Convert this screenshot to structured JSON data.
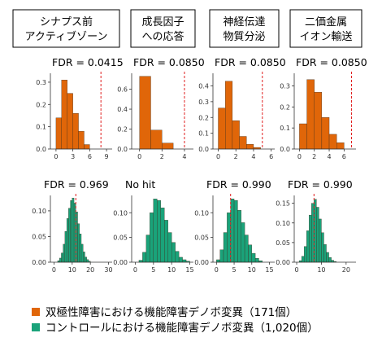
{
  "colors": {
    "patient": "#e06609",
    "control": "#1aa37a",
    "threshold": "#e02020",
    "axis": "#333333"
  },
  "legend": {
    "patient_label": "双極性障害における機能障害デノボ変異（171個）",
    "control_label": "コントロールにおける機能障害デノボ変異（1,020個）"
  },
  "chart_data": [
    {
      "type": "bar",
      "group": "patient",
      "category": "シナプス前\nアクティブゾーン",
      "annotation": "FDR = 0.0415",
      "xticks": [
        0,
        3,
        6,
        9
      ],
      "xlim": [
        -1,
        10
      ],
      "yticks": [
        0.0,
        0.1,
        0.2,
        0.3
      ],
      "ytick_labels": [
        "0.0",
        "0.1",
        "0.2",
        "0.3"
      ],
      "ylim": [
        0,
        0.34
      ],
      "bin_width": 1,
      "x": [
        0,
        1,
        2,
        3,
        4,
        5
      ],
      "values": [
        0.14,
        0.31,
        0.25,
        0.16,
        0.08,
        0.02
      ],
      "threshold": 8
    },
    {
      "type": "bar",
      "group": "patient",
      "category": "成長因子\nへの応答",
      "annotation": "FDR = 0.0850",
      "xticks": [
        0,
        2,
        4
      ],
      "xlim": [
        -0.7,
        4.8
      ],
      "yticks": [
        0.0,
        0.2,
        0.4,
        0.6
      ],
      "ytick_labels": [
        "0.0",
        "0.2",
        "0.4",
        "0.6"
      ],
      "ylim": [
        0,
        0.76
      ],
      "bin_width": 1,
      "x": [
        0,
        1,
        2
      ],
      "values": [
        0.73,
        0.19,
        0.06
      ],
      "threshold": 4
    },
    {
      "type": "bar",
      "group": "patient",
      "category": "神経伝達\n物質分泌",
      "annotation": "FDR = 0.0850",
      "xticks": [
        0,
        2,
        4,
        6
      ],
      "xlim": [
        -0.6,
        6.4
      ],
      "yticks": [
        0.0,
        0.1,
        0.2,
        0.3,
        0.4
      ],
      "ytick_labels": [
        "0.0",
        "0.1",
        "0.2",
        "0.3",
        "0.4"
      ],
      "ylim": [
        0,
        0.48
      ],
      "bin_width": 0.8,
      "x": [
        0,
        0.8,
        1.6,
        2.4,
        3.2,
        4.0
      ],
      "values": [
        0.26,
        0.43,
        0.18,
        0.08,
        0.03,
        0.01
      ],
      "threshold": 5
    },
    {
      "type": "bar",
      "group": "patient",
      "category": "二価金属\nイオン輸送",
      "annotation": "FDR = 0.0850",
      "xticks": [
        0,
        2,
        4,
        6
      ],
      "xlim": [
        -0.7,
        7.6
      ],
      "yticks": [
        0.0,
        0.1,
        0.2,
        0.3
      ],
      "ytick_labels": [
        "0.0",
        "0.1",
        "0.2",
        "0.3"
      ],
      "ylim": [
        0,
        0.36
      ],
      "bin_width": 1,
      "x": [
        0,
        1,
        2,
        3,
        4,
        5
      ],
      "values": [
        0.12,
        0.33,
        0.27,
        0.15,
        0.07,
        0.03
      ],
      "threshold": 7
    },
    {
      "type": "bar",
      "group": "control",
      "category": "シナプス前\nアクティブゾーン",
      "annotation": "FDR = 0.969",
      "xticks": [
        0,
        10,
        20,
        30
      ],
      "xlim": [
        -2,
        32
      ],
      "yticks": [
        0.0,
        0.05,
        0.1
      ],
      "ytick_labels": [
        "0.00",
        "0.05",
        "0.10"
      ],
      "ylim": [
        0,
        0.13
      ],
      "bin_width": 1,
      "x": [
        2,
        3,
        4,
        5,
        6,
        7,
        8,
        9,
        10,
        11,
        12,
        13,
        14,
        15,
        16,
        17,
        18,
        19
      ],
      "values": [
        0.003,
        0.008,
        0.018,
        0.035,
        0.06,
        0.085,
        0.105,
        0.12,
        0.125,
        0.115,
        0.098,
        0.075,
        0.055,
        0.035,
        0.02,
        0.01,
        0.005,
        0.002
      ],
      "threshold": 12
    },
    {
      "type": "bar",
      "group": "control",
      "category": "成長因子\nへの応答",
      "annotation": "No hit",
      "xticks": [
        0,
        5,
        10,
        15
      ],
      "xlim": [
        -1,
        16
      ],
      "yticks": [
        0.0,
        0.05,
        0.1
      ],
      "ytick_labels": [
        "0.00",
        "0.05",
        "0.10"
      ],
      "ylim": [
        0,
        0.135
      ],
      "bin_width": 1,
      "x": [
        1,
        2,
        3,
        4,
        5,
        6,
        7,
        8,
        9,
        10,
        11,
        12,
        13,
        14
      ],
      "values": [
        0.004,
        0.02,
        0.055,
        0.1,
        0.128,
        0.125,
        0.11,
        0.085,
        0.06,
        0.04,
        0.022,
        0.01,
        0.005,
        0.002
      ],
      "threshold": null
    },
    {
      "type": "bar",
      "group": "control",
      "category": "神経伝達\n物質分泌",
      "annotation": "FDR = 0.990",
      "xticks": [
        0,
        5,
        10,
        15
      ],
      "xlim": [
        -1,
        16.5
      ],
      "yticks": [
        0.0,
        0.05,
        0.1
      ],
      "ytick_labels": [
        "0.00",
        "0.05",
        "0.10"
      ],
      "ylim": [
        0,
        0.135
      ],
      "bin_width": 1,
      "x": [
        0,
        1,
        2,
        3,
        4,
        5,
        6,
        7,
        8,
        9,
        10,
        11,
        12
      ],
      "values": [
        0.005,
        0.025,
        0.06,
        0.1,
        0.128,
        0.125,
        0.105,
        0.08,
        0.055,
        0.035,
        0.018,
        0.008,
        0.003
      ],
      "threshold": 4
    },
    {
      "type": "bar",
      "group": "control",
      "category": "二価金属\nイオン輸送",
      "annotation": "FDR = 0.990",
      "xticks": [
        0,
        10,
        20
      ],
      "xlim": [
        -1,
        24
      ],
      "yticks": [
        0.0,
        0.05,
        0.1,
        0.15
      ],
      "ytick_labels": [
        "0.00",
        "0.05",
        "0.10",
        "0.15"
      ],
      "ylim": [
        0,
        0.17
      ],
      "bin_width": 1,
      "x": [
        1,
        2,
        3,
        4,
        5,
        6,
        7,
        8,
        9,
        10,
        11,
        12,
        13,
        14,
        15
      ],
      "values": [
        0.004,
        0.015,
        0.04,
        0.08,
        0.12,
        0.15,
        0.16,
        0.14,
        0.11,
        0.075,
        0.045,
        0.025,
        0.012,
        0.005,
        0.002
      ],
      "threshold": 7
    }
  ]
}
